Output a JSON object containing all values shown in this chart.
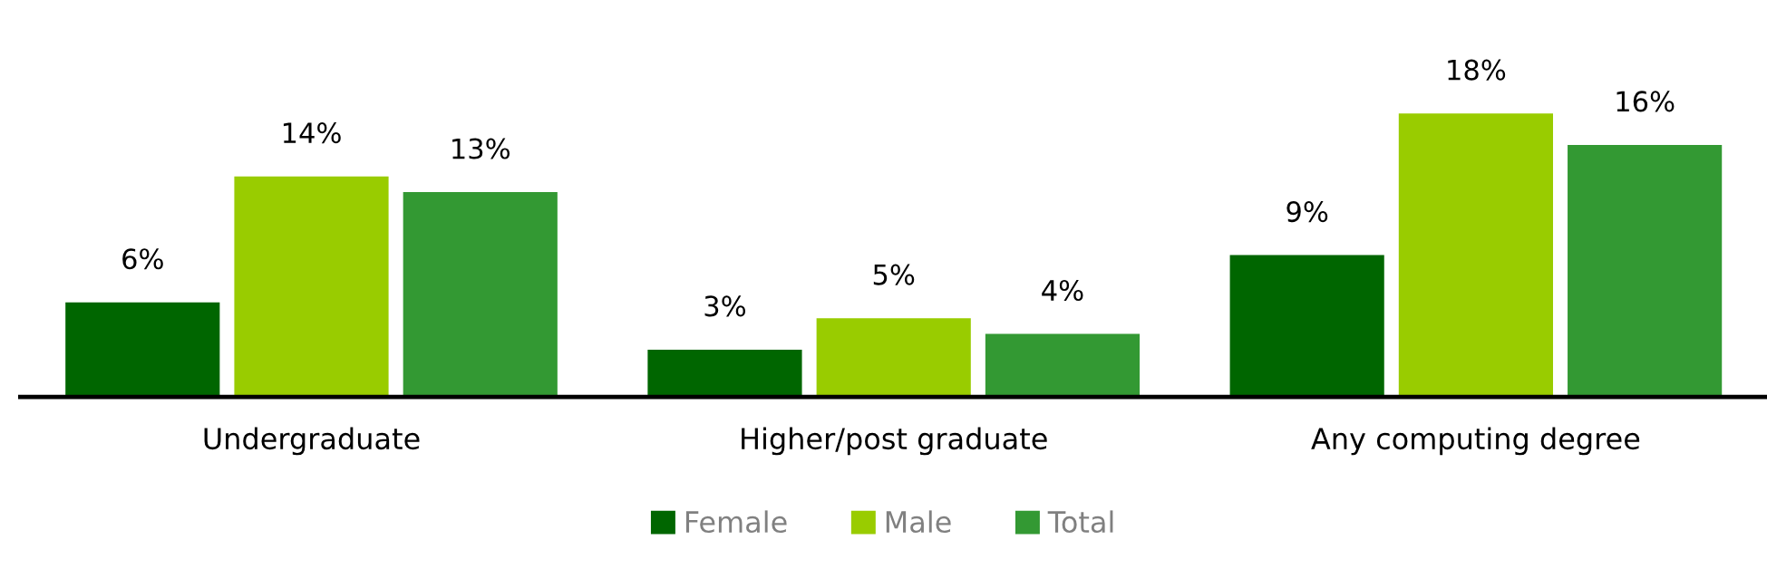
{
  "chart_data": {
    "type": "bar",
    "categories": [
      "Undergraduate",
      "Higher/post graduate",
      "Any computing degree"
    ],
    "series": [
      {
        "name": "Female",
        "color": "#006600",
        "values": [
          6,
          3,
          9
        ],
        "value_labels": [
          "6%",
          "3%",
          "9%"
        ]
      },
      {
        "name": "Male",
        "color": "#99cc00",
        "values": [
          14,
          5,
          18
        ],
        "value_labels": [
          "14%",
          "5%",
          "18%"
        ]
      },
      {
        "name": "Total",
        "color": "#339933",
        "values": [
          13,
          4,
          16
        ],
        "value_labels": [
          "13%",
          "4%",
          "16%"
        ]
      }
    ],
    "legend": "bottom"
  }
}
